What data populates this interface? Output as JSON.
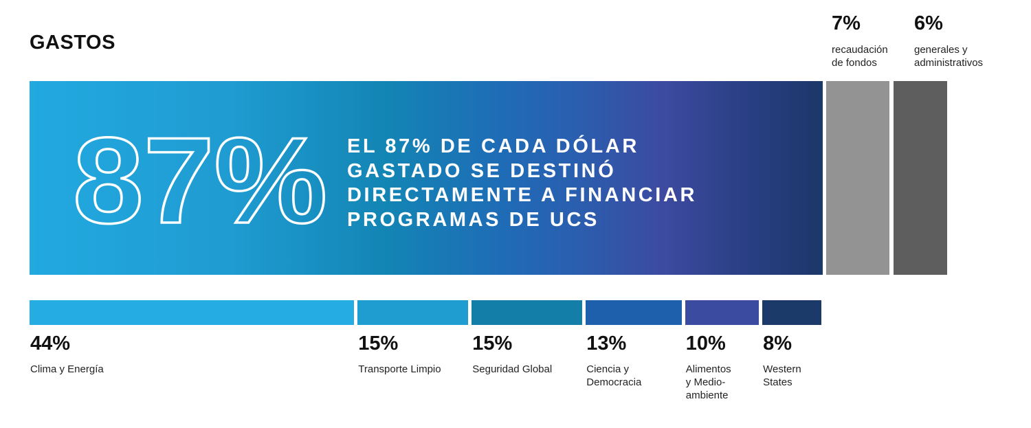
{
  "title": "GASTOS",
  "chart_data": {
    "type": "bar",
    "title": "GASTOS",
    "overhead": [
      {
        "value": 7,
        "label": "7%",
        "caption": "recaudación\nde fondos",
        "color": "#939393"
      },
      {
        "value": 6,
        "label": "6%",
        "caption": "generales y\nadministrativos",
        "color": "#5e5e5e"
      }
    ],
    "programs_total": {
      "value": 87,
      "label": "87%",
      "headline": "EL 87% DE CADA DÓLAR\nGASTADO SE DESTINÓ\nDIRECTAMENTE A FINANCIAR\nPROGRAMAS DE UCS"
    },
    "programs": [
      {
        "value": 44,
        "label": "44%",
        "caption": "Clima y Energía",
        "color": "#25ace2"
      },
      {
        "value": 15,
        "label": "15%",
        "caption": "Transporte Limpio",
        "color": "#1f9cd0"
      },
      {
        "value": 15,
        "label": "15%",
        "caption": "Seguridad Global",
        "color": "#137ea8"
      },
      {
        "value": 13,
        "label": "13%",
        "caption": "Ciencia y\nDemocracia",
        "color": "#1f60ad"
      },
      {
        "value": 10,
        "label": "10%",
        "caption": "Alimentos\ny Medio-\nambiente",
        "color": "#3b4ba0"
      },
      {
        "value": 8,
        "label": "8%",
        "caption": "Western\nStates",
        "color": "#1c3a69"
      }
    ]
  }
}
